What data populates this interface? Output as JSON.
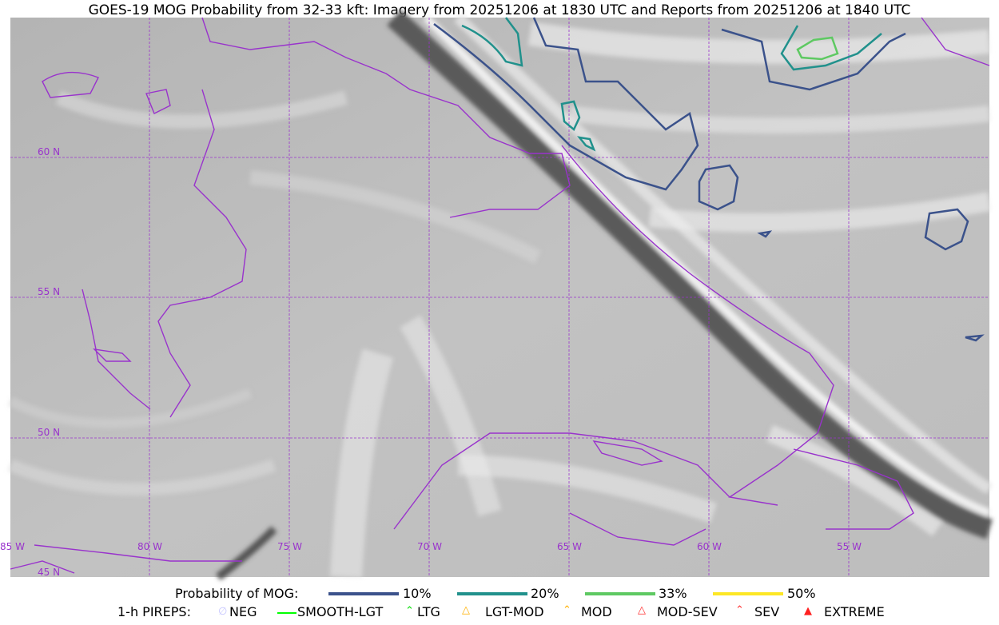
{
  "title": "GOES-19 MOG Probability from 32-33 kft: Imagery from 20251206 at 1830 UTC and Reports from 20251206 at 1840 UTC",
  "map": {
    "lat_labels": [
      "60 N",
      "55 N",
      "50 N",
      "45 N"
    ],
    "lon_labels": [
      "85 W",
      "80 W",
      "75 W",
      "70 W",
      "65 W",
      "60 W",
      "55 W"
    ],
    "coastline_color": "#9933cc",
    "gridline_color": "#9933cc"
  },
  "legend": {
    "mog_label": "Probability of MOG:",
    "mog_levels": [
      {
        "label": "10%",
        "color": "#3b528b"
      },
      {
        "label": "20%",
        "color": "#21918c"
      },
      {
        "label": "33%",
        "color": "#5ec962"
      },
      {
        "label": "50%",
        "color": "#fde725"
      }
    ],
    "pirep_label": "1-h PIREPS:",
    "pireps": [
      {
        "label": "NEG",
        "color": "#c8c8ff",
        "icon": "neg-icon"
      },
      {
        "label": "SMOOTH-LGT",
        "color": "#00ff00",
        "icon": "smooth-lgt-icon"
      },
      {
        "label": "LTG",
        "color": "#00dd00",
        "icon": "ltg-icon"
      },
      {
        "label": "LGT-MOD",
        "color": "#ffb000",
        "icon": "lgt-mod-icon"
      },
      {
        "label": "MOD",
        "color": "#ffb000",
        "icon": "mod-icon"
      },
      {
        "label": "MOD-SEV",
        "color": "#ff3030",
        "icon": "mod-sev-icon"
      },
      {
        "label": "SEV",
        "color": "#ff3030",
        "icon": "sev-icon"
      },
      {
        "label": "EXTREME",
        "color": "#ff2020",
        "icon": "extreme-icon"
      }
    ]
  }
}
